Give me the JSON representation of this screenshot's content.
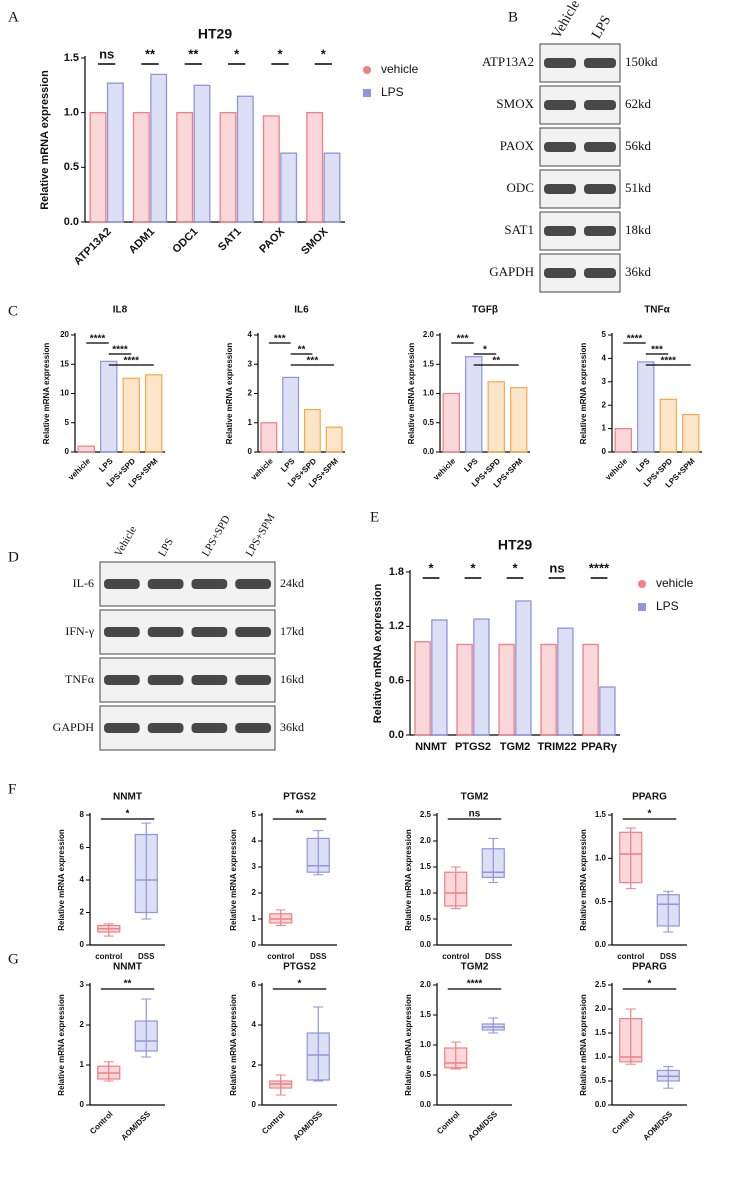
{
  "panels": [
    "A",
    "B",
    "C",
    "D",
    "E",
    "F",
    "G"
  ],
  "chart_data": [
    {
      "type": "grouped_bar",
      "title": "HT29",
      "y_label": "Relative  mRNA expression",
      "categories": [
        "ATP13A2",
        "ADM1",
        "ODC1",
        "SAT1",
        "PAOX",
        "SMOX"
      ],
      "series": [
        {
          "name": "vehicle",
          "color": "#f07f86",
          "values": [
            1.0,
            1.0,
            1.0,
            1.0,
            0.97,
            1.0
          ]
        },
        {
          "name": "LPS",
          "color": "#8f95de",
          "values": [
            1.27,
            1.35,
            1.25,
            1.15,
            0.63,
            0.63
          ]
        }
      ],
      "significance": [
        "ns",
        "**",
        "**",
        "*",
        "*",
        "*"
      ],
      "ylim": [
        0,
        1.5
      ],
      "yticks": [
        {
          "value": 0,
          "label": "0.0"
        },
        {
          "value": 0.5,
          "label": "0.5"
        },
        {
          "value": 1,
          "label": "1.0"
        },
        {
          "value": 1.5,
          "label": "1.5"
        }
      ],
      "legend": "right"
    },
    {
      "type": "bar",
      "title": "IL8",
      "y_label": "Relative mRNA expression",
      "categories": [
        "vehicle",
        "LPS",
        "LPS+SPD",
        "LPS+SPM"
      ],
      "colors": [
        "#f07f86",
        "#8f95de",
        "#f5a94a",
        "#f5a94a"
      ],
      "values": [
        1,
        15.5,
        12.6,
        13.2
      ],
      "comparisons": [
        {
          "pair": [
            0,
            1
          ],
          "label": "****"
        },
        {
          "pair": [
            1,
            2
          ],
          "label": "****"
        },
        {
          "pair": [
            1,
            3
          ],
          "label": "****"
        }
      ],
      "ylim": [
        0,
        20
      ],
      "yticks": [
        0,
        5,
        10,
        15,
        20
      ]
    },
    {
      "type": "bar",
      "title": "IL6",
      "y_label": "Relative mRNA expression",
      "categories": [
        "vehicle",
        "LPS",
        "LPS+SPD",
        "LPS+SPM"
      ],
      "colors": [
        "#f07f86",
        "#8f95de",
        "#f5a94a",
        "#f5a94a"
      ],
      "values": [
        1,
        2.55,
        1.45,
        0.85
      ],
      "comparisons": [
        {
          "pair": [
            0,
            1
          ],
          "label": "***"
        },
        {
          "pair": [
            1,
            2
          ],
          "label": "**"
        },
        {
          "pair": [
            1,
            3
          ],
          "label": "***"
        }
      ],
      "ylim": [
        0,
        4
      ],
      "yticks": [
        0,
        1,
        2,
        3,
        4
      ]
    },
    {
      "type": "bar",
      "title": "TGFβ",
      "y_label": "Relative mRNA expression",
      "categories": [
        "vehicle",
        "LPS",
        "LPS+SPD",
        "LPS+SPM"
      ],
      "colors": [
        "#f07f86",
        "#8f95de",
        "#f5a94a",
        "#f5a94a"
      ],
      "values": [
        1,
        1.63,
        1.2,
        1.1
      ],
      "comparisons": [
        {
          "pair": [
            0,
            1
          ],
          "label": "***"
        },
        {
          "pair": [
            1,
            2
          ],
          "label": "*"
        },
        {
          "pair": [
            1,
            3
          ],
          "label": "**"
        }
      ],
      "ylim": [
        0,
        2
      ],
      "yticks": [
        {
          "value": 0,
          "label": "0.0"
        },
        {
          "value": 0.5,
          "label": "0.5"
        },
        {
          "value": 1,
          "label": "1.0"
        },
        {
          "value": 1.5,
          "label": "1.5"
        },
        {
          "value": 2,
          "label": "2.0"
        }
      ]
    },
    {
      "type": "bar",
      "title": "TNFα",
      "y_label": "Relative mRNA expression",
      "categories": [
        "vehicle",
        "LPS",
        "LPS+SPD",
        "LPS+SPM"
      ],
      "colors": [
        "#f07f86",
        "#8f95de",
        "#f5a94a",
        "#f5a94a"
      ],
      "values": [
        1,
        3.85,
        2.25,
        1.6
      ],
      "comparisons": [
        {
          "pair": [
            0,
            1
          ],
          "label": "****"
        },
        {
          "pair": [
            1,
            2
          ],
          "label": "***"
        },
        {
          "pair": [
            1,
            3
          ],
          "label": "****"
        }
      ],
      "ylim": [
        0,
        5
      ],
      "yticks": [
        0,
        1,
        2,
        3,
        4,
        5
      ]
    },
    {
      "type": "grouped_bar",
      "title": "HT29",
      "y_label": "Relative  mRNA expression",
      "categories": [
        "NNMT",
        "PTGS2",
        "TGM2",
        "TRIM22",
        "PPARγ"
      ],
      "series": [
        {
          "name": "vehicle",
          "color": "#f07f86",
          "values": [
            1.03,
            1.0,
            1.0,
            1.0,
            1.0
          ]
        },
        {
          "name": "LPS",
          "color": "#8f95de",
          "values": [
            1.27,
            1.28,
            1.48,
            1.18,
            0.53
          ]
        }
      ],
      "significance": [
        "*",
        "*",
        "*",
        "ns",
        "****"
      ],
      "ylim": [
        0,
        1.8
      ],
      "yticks": [
        {
          "value": 0,
          "label": "0.0"
        },
        {
          "value": 0.6,
          "label": "0.6"
        },
        {
          "value": 1.2,
          "label": "1.2"
        },
        {
          "value": 1.8,
          "label": "1.8"
        }
      ],
      "legend": "right"
    },
    {
      "type": "box",
      "title": "NNMT",
      "y_label": "Relative mRNA expression",
      "categories": [
        "control",
        "DSS"
      ],
      "colors": [
        "#f07f86",
        "#8f95de"
      ],
      "values": [
        [
          0.55,
          0.8,
          1.0,
          1.2,
          1.3
        ],
        [
          1.6,
          2.0,
          4.0,
          6.8,
          7.5
        ]
      ],
      "comparison": "*",
      "ylim": [
        0,
        8
      ],
      "yticks": [
        0,
        2,
        4,
        6,
        8
      ]
    },
    {
      "type": "box",
      "title": "PTGS2",
      "y_label": "Relative mRNA expression",
      "categories": [
        "control",
        "DSS"
      ],
      "colors": [
        "#f07f86",
        "#8f95de"
      ],
      "values": [
        [
          0.75,
          0.85,
          1.0,
          1.2,
          1.35
        ],
        [
          2.7,
          2.8,
          3.05,
          4.1,
          4.4
        ]
      ],
      "comparison": "**",
      "ylim": [
        0,
        5
      ],
      "yticks": [
        0,
        1,
        2,
        3,
        4,
        5
      ]
    },
    {
      "type": "box",
      "title": "TGM2",
      "y_label": "Relative mRNA expression",
      "categories": [
        "control",
        "DSS"
      ],
      "colors": [
        "#f07f86",
        "#8f95de"
      ],
      "values": [
        [
          0.7,
          0.75,
          1.0,
          1.4,
          1.5
        ],
        [
          1.2,
          1.3,
          1.4,
          1.85,
          2.05
        ]
      ],
      "comparison": "ns",
      "ylim": [
        0,
        2.5
      ],
      "yticks": [
        {
          "value": 0,
          "label": "0.0"
        },
        {
          "value": 0.5,
          "label": "0.5"
        },
        {
          "value": 1,
          "label": "1.0"
        },
        {
          "value": 1.5,
          "label": "1.5"
        },
        {
          "value": 2,
          "label": "2.0"
        },
        {
          "value": 2.5,
          "label": "2.5"
        }
      ]
    },
    {
      "type": "box",
      "title": "PPARG",
      "y_label": "Relative mRNA expression",
      "categories": [
        "control",
        "DSS"
      ],
      "colors": [
        "#f07f86",
        "#8f95de"
      ],
      "values": [
        [
          0.65,
          0.72,
          1.05,
          1.3,
          1.35
        ],
        [
          0.15,
          0.22,
          0.47,
          0.58,
          0.62
        ]
      ],
      "comparison": "*",
      "ylim": [
        0,
        1.5
      ],
      "yticks": [
        {
          "value": 0,
          "label": "0.0"
        },
        {
          "value": 0.5,
          "label": "0.5"
        },
        {
          "value": 1,
          "label": "1.0"
        },
        {
          "value": 1.5,
          "label": "1.5"
        }
      ]
    },
    {
      "type": "box",
      "title": "NNMT",
      "y_label": "Relative mRNA expression",
      "categories": [
        "Control",
        "AOM/DSS"
      ],
      "colors": [
        "#f07f86",
        "#8f95de"
      ],
      "values": [
        [
          0.6,
          0.65,
          0.8,
          0.97,
          1.08
        ],
        [
          1.2,
          1.35,
          1.6,
          2.1,
          2.65
        ]
      ],
      "comparison": "**",
      "ylim": [
        0,
        3
      ],
      "yticks": [
        0,
        1,
        2,
        3
      ]
    },
    {
      "type": "box",
      "title": "PTGS2",
      "y_label": "Relative mRNA expression",
      "categories": [
        "Control",
        "AOM/DSS"
      ],
      "colors": [
        "#f07f86",
        "#8f95de"
      ],
      "values": [
        [
          0.5,
          0.85,
          1.05,
          1.2,
          1.5
        ],
        [
          1.2,
          1.25,
          2.5,
          3.6,
          4.9
        ]
      ],
      "comparison": "*",
      "ylim": [
        0,
        6
      ],
      "yticks": [
        0,
        2,
        4,
        6
      ]
    },
    {
      "type": "box",
      "title": "TGM2",
      "y_label": "Relative mRNA expression",
      "categories": [
        "Control",
        "AOM/DSS"
      ],
      "colors": [
        "#f07f86",
        "#8f95de"
      ],
      "values": [
        [
          0.6,
          0.62,
          0.7,
          0.95,
          1.05
        ],
        [
          1.2,
          1.25,
          1.3,
          1.35,
          1.45
        ]
      ],
      "comparison": "****",
      "ylim": [
        0,
        2
      ],
      "yticks": [
        {
          "value": 0,
          "label": "0.0"
        },
        {
          "value": 0.5,
          "label": "0.5"
        },
        {
          "value": 1,
          "label": "1.0"
        },
        {
          "value": 1.5,
          "label": "1.5"
        },
        {
          "value": 2,
          "label": "2.0"
        }
      ]
    },
    {
      "type": "box",
      "title": "PPARG",
      "y_label": "Relative mRNA expression",
      "categories": [
        "Control",
        "AOM/DSS"
      ],
      "colors": [
        "#f07f86",
        "#8f95de"
      ],
      "values": [
        [
          0.85,
          0.9,
          1.0,
          1.8,
          2.0
        ],
        [
          0.35,
          0.5,
          0.6,
          0.72,
          0.8
        ]
      ],
      "comparison": "*",
      "ylim": [
        0,
        2.5
      ],
      "yticks": [
        {
          "value": 0,
          "label": "0.0"
        },
        {
          "value": 0.5,
          "label": "0.5"
        },
        {
          "value": 1,
          "label": "1.0"
        },
        {
          "value": 1.5,
          "label": "1.5"
        },
        {
          "value": 2,
          "label": "2.0"
        },
        {
          "value": 2.5,
          "label": "2.5"
        }
      ]
    }
  ],
  "blots": [
    {
      "lanes": [
        "Vehicle",
        "LPS"
      ],
      "rows": [
        {
          "name": "ATP13A2",
          "size": "150kd"
        },
        {
          "name": "SMOX",
          "size": "62kd"
        },
        {
          "name": "PAOX",
          "size": "56kd"
        },
        {
          "name": "ODC",
          "size": "51kd"
        },
        {
          "name": "SAT1",
          "size": "18kd"
        },
        {
          "name": "GAPDH",
          "size": "36kd"
        }
      ]
    },
    {
      "lanes": [
        "Vehicle",
        "LPS",
        "LPS+SPD",
        "LPS+SPM"
      ],
      "rows": [
        {
          "name": "IL-6",
          "size": "24kd"
        },
        {
          "name": "IFN-γ",
          "size": "17kd"
        },
        {
          "name": "TNFα",
          "size": "16kd"
        },
        {
          "name": "GAPDH",
          "size": "36kd"
        }
      ]
    }
  ]
}
